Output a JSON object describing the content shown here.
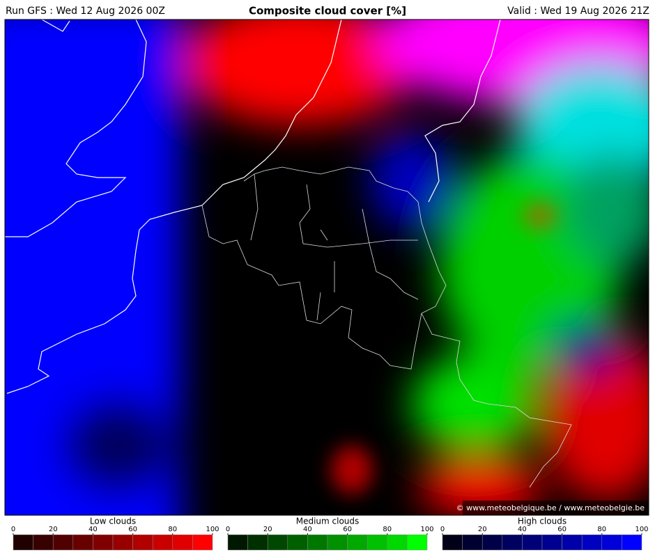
{
  "header": {
    "run": "Run GFS : Wed 12 Aug 2026 00Z",
    "title": "Composite cloud cover [%]",
    "valid": "Valid : Wed 19 Aug 2026 21Z"
  },
  "map": {
    "credit": "© www.meteobelgique.be / www.meteobelgie.be"
  },
  "legend": [
    {
      "label": "Low clouds",
      "ticks": [
        0,
        20,
        40,
        60,
        80,
        100
      ],
      "colors": [
        "#200000",
        "#380000",
        "#500000",
        "#680000",
        "#800000",
        "#980000",
        "#b00000",
        "#c80000",
        "#e00000",
        "#ff0000"
      ]
    },
    {
      "label": "Medium clouds",
      "ticks": [
        0,
        20,
        40,
        60,
        80,
        100
      ],
      "colors": [
        "#001800",
        "#003000",
        "#004800",
        "#006000",
        "#007800",
        "#009000",
        "#00a800",
        "#00c000",
        "#00d800",
        "#00ff00"
      ]
    },
    {
      "label": "High clouds",
      "ticks": [
        0,
        20,
        40,
        60,
        80,
        100
      ],
      "colors": [
        "#000018",
        "#000030",
        "#000048",
        "#000060",
        "#000078",
        "#000090",
        "#0000a8",
        "#0000c0",
        "#0000d8",
        "#0000ff"
      ]
    }
  ]
}
